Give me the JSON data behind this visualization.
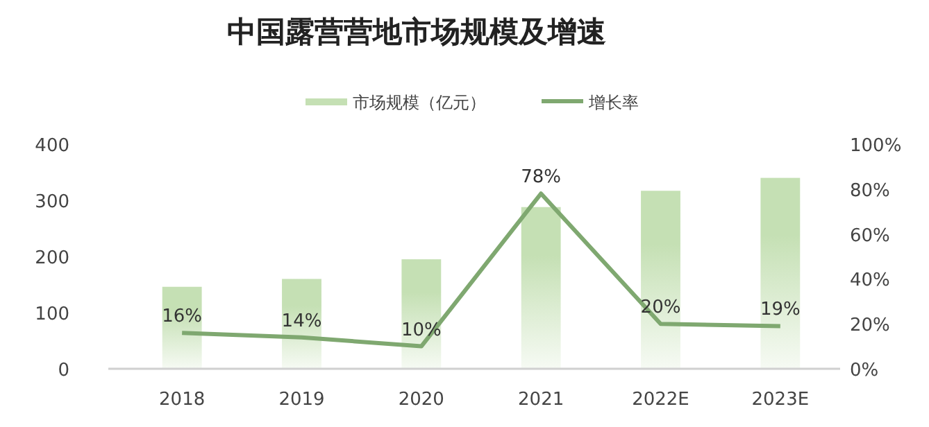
{
  "chart_data": {
    "type": "bar",
    "title": "中国露营营地市场规模及增速",
    "categories": [
      "2018",
      "2019",
      "2020",
      "2021",
      "2022E",
      "2023E"
    ],
    "series": [
      {
        "name": "市场规模（亿元）",
        "color": "#c5e0b4",
        "values": [
          146,
          160,
          195,
          288,
          317,
          340
        ]
      },
      {
        "name": "增长率",
        "type": "line",
        "axis": "y2",
        "color": "#7fa870",
        "values": [
          16,
          14,
          10,
          78,
          20,
          19
        ],
        "value_labels": [
          "16%",
          "14%",
          "10%",
          "78%",
          "20%",
          "19%"
        ]
      }
    ],
    "ylim": [
      0,
      400
    ],
    "yticks": [
      0,
      100,
      200,
      300,
      400
    ],
    "y2lim": [
      0,
      100
    ],
    "y2ticks": [
      {
        "value": 0,
        "label": "0%"
      },
      {
        "value": 20,
        "label": "20%"
      },
      {
        "value": 40,
        "label": "40%"
      },
      {
        "value": 60,
        "label": "60%"
      },
      {
        "value": 80,
        "label": "80%"
      },
      {
        "value": 100,
        "label": "100%"
      }
    ],
    "legend": "top"
  }
}
